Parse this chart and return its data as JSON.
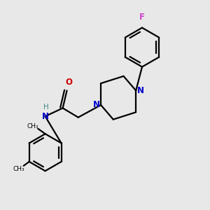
{
  "bg_color": "#e8e8e8",
  "bond_color": "#000000",
  "N_color": "#0000cc",
  "O_color": "#cc0000",
  "F_color": "#cc44cc",
  "line_width": 1.6,
  "figsize": [
    3.0,
    3.0
  ],
  "dpi": 100,
  "xlim": [
    0,
    10
  ],
  "ylim": [
    0,
    10
  ],
  "font_size": 8.5
}
